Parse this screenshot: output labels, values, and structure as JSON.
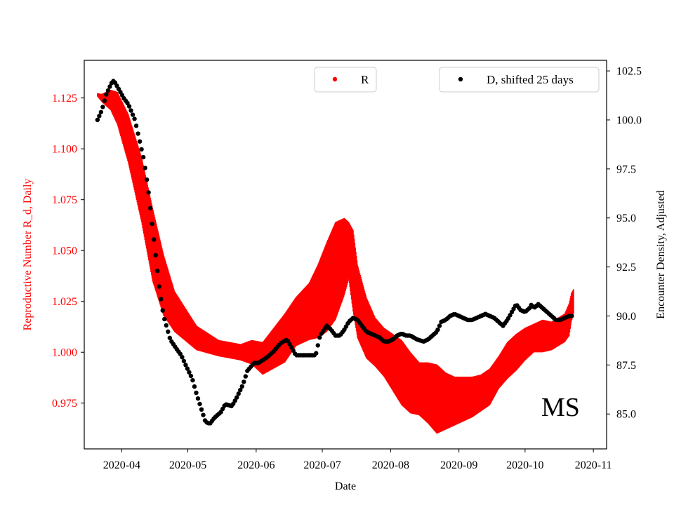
{
  "chart_data": {
    "type": "scatter",
    "state_label": "MS",
    "xlabel": "Date",
    "ylabel_left": "Reproductive Number R_d, Daily",
    "ylabel_right": "Encounter Density, Adjusted",
    "x_range": [
      "2020-03-15",
      "2020-11-07"
    ],
    "x_ticks": [
      "2020-04",
      "2020-05",
      "2020-06",
      "2020-07",
      "2020-08",
      "2020-09",
      "2020-10",
      "2020-11"
    ],
    "x_tick_dates": [
      "2020-04-01",
      "2020-05-01",
      "2020-06-01",
      "2020-07-01",
      "2020-08-01",
      "2020-09-01",
      "2020-10-01",
      "2020-11-01"
    ],
    "y_left_range": [
      0.9525,
      1.1435
    ],
    "y_left_ticks": [
      "0.975",
      "1.000",
      "1.025",
      "1.050",
      "1.075",
      "1.100",
      "1.125"
    ],
    "y_right_range": [
      83.22,
      103.04
    ],
    "y_right_ticks": [
      "85.0",
      "87.5",
      "90.0",
      "92.5",
      "95.0",
      "97.5",
      "100.0",
      "102.5"
    ],
    "colors": {
      "R": "#ff0000",
      "D": "#000000",
      "axis": "#000000",
      "left_axis_text": "#ff0000"
    },
    "series": [
      {
        "name": "R",
        "axis": "left",
        "start_date": "2020-03-21",
        "note": "R band per day: center ± half-width (reproduction number units)",
        "anchor_days": [
          0,
          2,
          6,
          9,
          14,
          20,
          25,
          30,
          35,
          45,
          55,
          65,
          70,
          75,
          85,
          90,
          96,
          100,
          104,
          108,
          112,
          114,
          116,
          118,
          122,
          126,
          130,
          134,
          138,
          142,
          146,
          150,
          154,
          158,
          162,
          166,
          170,
          174,
          178,
          182,
          186,
          190,
          194,
          198,
          202,
          206,
          209,
          212,
          214,
          215,
          216
        ],
        "anchor_center": [
          1.1265,
          1.125,
          1.124,
          1.12,
          1.105,
          1.08,
          1.053,
          1.033,
          1.02,
          1.007,
          1.002,
          1.0,
          1.0,
          0.997,
          1.007,
          1.015,
          1.02,
          1.025,
          1.032,
          1.04,
          1.047,
          1.05,
          1.04,
          1.025,
          1.012,
          1.005,
          1.0,
          0.995,
          0.99,
          0.985,
          0.982,
          0.98,
          0.977,
          0.976,
          0.976,
          0.977,
          0.978,
          0.98,
          0.983,
          0.99,
          0.996,
          1.0,
          1.004,
          1.007,
          1.008,
          1.008,
          1.01,
          1.012,
          1.016,
          1.022,
          1.025
        ],
        "anchor_halfwidth": [
          0.0008,
          0.002,
          0.005,
          0.008,
          0.012,
          0.016,
          0.018,
          0.015,
          0.01,
          0.006,
          0.004,
          0.004,
          0.006,
          0.008,
          0.012,
          0.012,
          0.014,
          0.018,
          0.022,
          0.024,
          0.019,
          0.014,
          0.02,
          0.018,
          0.015,
          0.012,
          0.012,
          0.014,
          0.016,
          0.015,
          0.013,
          0.015,
          0.017,
          0.014,
          0.012,
          0.011,
          0.01,
          0.009,
          0.009,
          0.008,
          0.009,
          0.009,
          0.008,
          0.007,
          0.008,
          0.007,
          0.007,
          0.007,
          0.008,
          0.007,
          0.006
        ]
      },
      {
        "name": "D, shifted 25 days",
        "axis": "right",
        "start_date": "2020-03-21",
        "spacing_days": 0.8,
        "anchor_days": [
          0,
          2,
          4,
          6,
          7,
          8,
          10,
          12,
          14,
          17,
          19,
          21,
          23,
          25,
          27,
          28,
          29,
          30,
          33,
          36,
          38,
          40,
          43,
          45,
          47,
          49,
          51,
          53,
          56,
          58,
          61,
          63,
          66,
          68,
          71,
          73,
          77,
          80,
          83,
          86,
          88,
          90,
          93,
          96,
          99,
          101,
          104,
          106,
          108,
          110,
          112,
          114,
          116,
          118,
          120,
          122,
          126,
          128,
          130,
          132,
          134,
          136,
          138,
          140,
          142,
          145,
          148,
          150,
          152,
          154,
          156,
          158,
          160,
          162,
          164,
          166,
          168,
          170,
          172,
          174,
          176,
          178,
          180,
          182,
          184,
          186,
          188,
          190,
          192,
          194,
          196,
          197,
          198,
          200,
          202,
          204,
          206,
          208,
          210,
          212,
          214,
          216
        ],
        "anchor_values": [
          100.0,
          100.5,
          101.3,
          101.8,
          102.0,
          101.9,
          101.5,
          101.1,
          100.8,
          100.0,
          99.0,
          98.0,
          96.5,
          94.5,
          92.5,
          91.5,
          90.7,
          90.0,
          88.8,
          88.3,
          88.0,
          87.5,
          86.8,
          86.0,
          85.3,
          84.6,
          84.5,
          84.8,
          85.1,
          85.5,
          85.4,
          85.8,
          86.5,
          87.2,
          87.6,
          87.6,
          87.9,
          88.2,
          88.6,
          88.8,
          88.4,
          88.0,
          88.0,
          88.0,
          88.0,
          89.0,
          89.5,
          89.3,
          89.0,
          89.0,
          89.3,
          89.7,
          89.9,
          89.8,
          89.5,
          89.2,
          89.0,
          88.9,
          88.7,
          88.7,
          88.8,
          89.0,
          89.1,
          89.0,
          89.0,
          88.8,
          88.7,
          88.8,
          89.0,
          89.2,
          89.7,
          89.8,
          90.0,
          90.1,
          90.0,
          89.9,
          89.8,
          89.8,
          89.9,
          90.0,
          90.1,
          90.0,
          89.9,
          89.7,
          89.5,
          89.8,
          90.2,
          90.6,
          90.3,
          90.2,
          90.4,
          90.6,
          90.4,
          90.6,
          90.4,
          90.2,
          90.0,
          89.8,
          89.8,
          89.9,
          90.0,
          90.0
        ]
      }
    ],
    "legend": [
      {
        "label": "R",
        "color": "#ff0000",
        "placement": "top-center"
      },
      {
        "label": "D, shifted 25 days",
        "color": "#000000",
        "placement": "top-right"
      }
    ]
  }
}
